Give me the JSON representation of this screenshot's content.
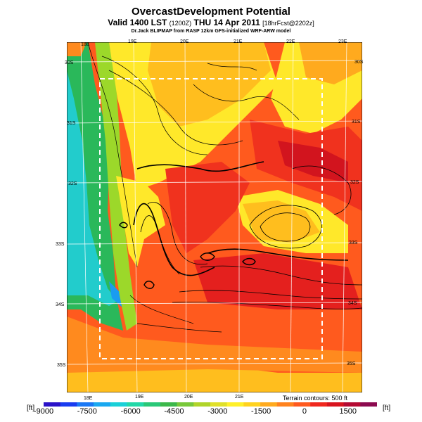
{
  "title": "OvercastDevelopment Potential",
  "subtitle_main": "Valid 1400 LST",
  "subtitle_code": "(1200Z)",
  "subtitle_date": "THU 14 Apr 2011",
  "subtitle_fcst": "[18hrFcst@2202z]",
  "credit": "Dr.Jack BLIPMAP from RASP 12km GFS-initialized WRF-ARW model",
  "terrain_note": "Terrain contours: 500 ft",
  "unit_left": "[ft]",
  "unit_right": "[ft]",
  "lon_top": [
    "18E",
    "19E",
    "20E",
    "21E",
    "22E",
    "23E"
  ],
  "lon_bottom": [
    "18E",
    "19E",
    "20E",
    "21E"
  ],
  "lat_left": [
    "30S",
    "31S",
    "32S",
    "33S",
    "34S",
    "35S"
  ],
  "lat_right": [
    "30S",
    "31S",
    "32S",
    "33S",
    "34S",
    "35S"
  ],
  "colorbar": {
    "min": -9000,
    "max": 2500,
    "ticks": [
      {
        "label": "-9000",
        "value": -9000
      },
      {
        "label": "-7500",
        "value": -7500
      },
      {
        "label": "-6000",
        "value": -6000
      },
      {
        "label": "-4500",
        "value": -4500
      },
      {
        "label": "-3000",
        "value": -3000
      },
      {
        "label": "-1500",
        "value": -1500
      },
      {
        "label": "0",
        "value": 0
      },
      {
        "label": "1500",
        "value": 1500
      }
    ],
    "colors": [
      "#2a12c8",
      "#1a3cf0",
      "#1a78f5",
      "#1aa8f0",
      "#1ad0d8",
      "#22d8a8",
      "#2ac878",
      "#3cb84a",
      "#78c83a",
      "#b0d42a",
      "#e0e02a",
      "#fff02a",
      "#ffd21e",
      "#ffaa1e",
      "#ff821e",
      "#ff5a1e",
      "#f0281e",
      "#d8141e",
      "#b40a32",
      "#8c0a50"
    ]
  },
  "colors": {
    "cyan": "#22cccc",
    "green": "#2ab85a",
    "lime": "#9cd82a",
    "yellow": "#ffe82a",
    "gold": "#ffbe1e",
    "orange": "#ff8a1e",
    "red": "#f0321e",
    "deep_red": "#d2141e"
  }
}
